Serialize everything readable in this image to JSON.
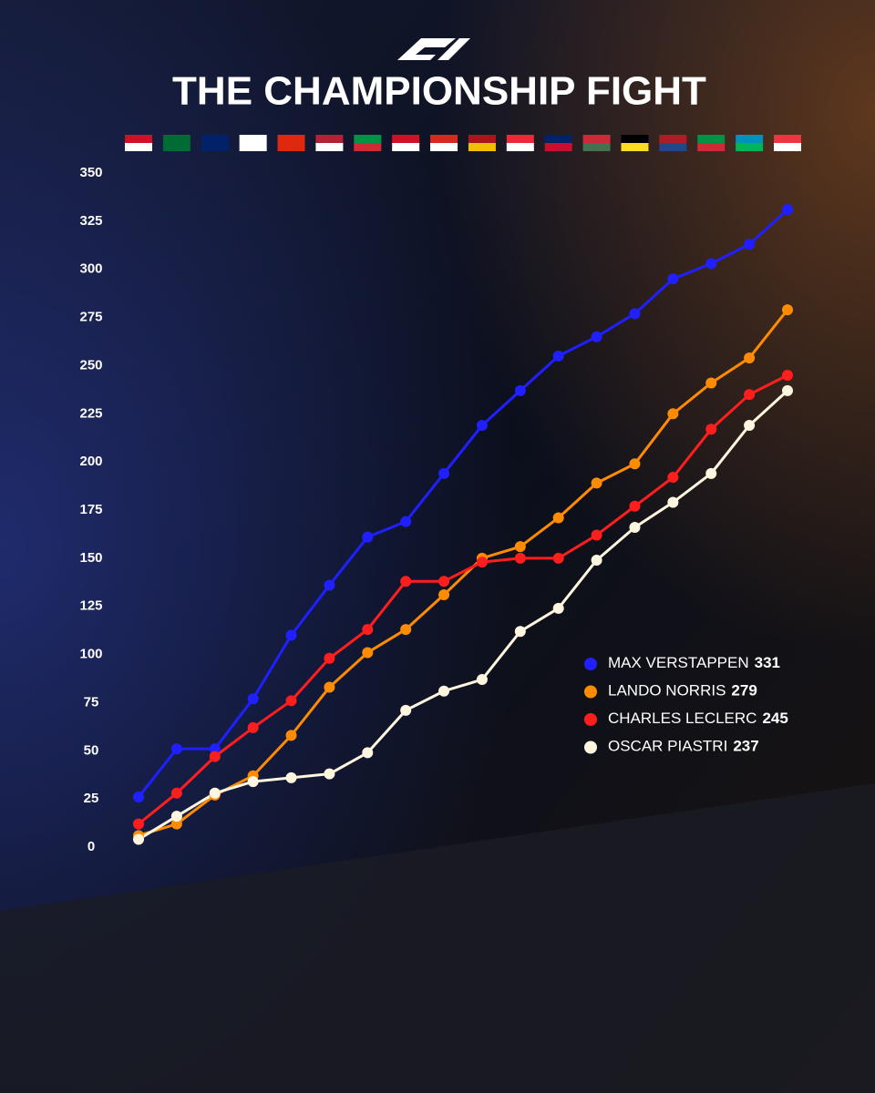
{
  "chart_data": {
    "type": "line",
    "title": "THE CHAMPIONSHIP FIGHT",
    "categories": [
      null,
      null,
      null,
      null,
      null,
      null,
      null,
      null,
      null,
      null,
      null,
      null,
      null,
      null,
      null,
      null,
      null,
      null
    ],
    "series": [
      {
        "name": "MAX VERSTAPPEN",
        "color": "#1f1fff",
        "values": [
          26,
          51,
          51,
          77,
          110,
          136,
          161,
          169,
          194,
          219,
          237,
          255,
          265,
          277,
          295,
          303,
          313,
          331
        ]
      },
      {
        "name": "LANDO NORRIS",
        "color": "#ff8c00",
        "values": [
          6,
          12,
          27,
          37,
          58,
          83,
          101,
          113,
          131,
          150,
          156,
          171,
          189,
          199,
          225,
          241,
          254,
          279
        ]
      },
      {
        "name": "CHARLES LECLERC",
        "color": "#ff1e1e",
        "values": [
          12,
          28,
          47,
          62,
          76,
          98,
          113,
          138,
          138,
          148,
          150,
          150,
          162,
          177,
          192,
          217,
          235,
          245
        ]
      },
      {
        "name": "OSCAR PIASTRI",
        "color": "#fff6e0",
        "values": [
          4,
          16,
          28,
          34,
          36,
          38,
          49,
          71,
          81,
          87,
          112,
          124,
          149,
          166,
          179,
          194,
          219,
          237
        ]
      }
    ],
    "ylim": [
      0,
      350
    ],
    "yticks": [
      0,
      25,
      50,
      75,
      100,
      125,
      150,
      175,
      200,
      225,
      250,
      275,
      300,
      325,
      350
    ],
    "grid": false
  }
}
